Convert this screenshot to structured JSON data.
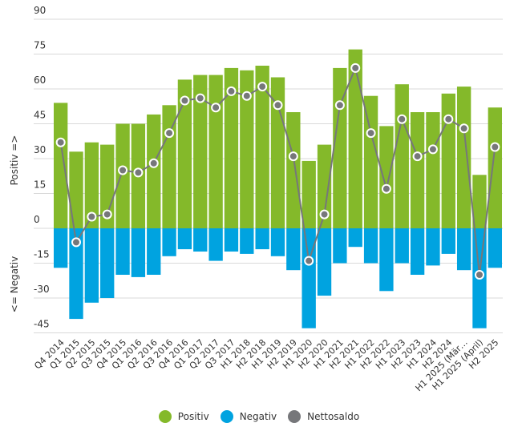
{
  "chart_data": {
    "type": "bar",
    "title": "",
    "xlabel": "",
    "ylabel_positive": "Positiv =>",
    "ylabel_negative": "<= Negativ",
    "ylim": [
      -45,
      90
    ],
    "yticks": [
      90,
      75,
      60,
      45,
      30,
      15,
      0,
      -15,
      -30,
      -45
    ],
    "grid": true,
    "legend_position": "bottom",
    "categories": [
      "Q4 2014",
      "Q1 2015",
      "Q2 2015",
      "Q3 2015",
      "Q4 2015",
      "Q1 2016",
      "Q2 2016",
      "Q3 2016",
      "Q4 2016",
      "Q1 2017",
      "Q2 2017",
      "Q3 2017",
      "H1 2018",
      "H2 2018",
      "H1 2019",
      "H2 2019",
      "H1 2020",
      "H2 2020",
      "H1 2021",
      "H2 2021",
      "H1 2022",
      "H2 2022",
      "H1 2023",
      "H2 2023",
      "H1 2024",
      "H2 2024",
      "H1 2025 (Mär…",
      "H1 2025 (April)",
      "H2 2025"
    ],
    "series": [
      {
        "name": "Positiv",
        "type": "bar",
        "color": "#84b92a",
        "values": [
          54,
          33,
          37,
          36,
          45,
          45,
          49,
          53,
          64,
          66,
          66,
          69,
          68,
          70,
          65,
          50,
          29,
          36,
          69,
          77,
          57,
          44,
          62,
          50,
          50,
          58,
          61,
          23,
          52
        ]
      },
      {
        "name": "Negativ",
        "type": "bar",
        "color": "#00a3e0",
        "values": [
          -17,
          -39,
          -32,
          -30,
          -20,
          -21,
          -20,
          -12,
          -9,
          -10,
          -14,
          -10,
          -11,
          -9,
          -12,
          -18,
          -43,
          -29,
          -15,
          -8,
          -15,
          -27,
          -15,
          -20,
          -16,
          -11,
          -18,
          -43,
          -17
        ]
      },
      {
        "name": "Nettosaldo",
        "type": "line",
        "color": "#76777a",
        "values": [
          37,
          -6,
          5,
          6,
          25,
          24,
          28,
          41,
          55,
          56,
          52,
          59,
          57,
          61,
          53,
          31,
          -14,
          6,
          53,
          69,
          41,
          17,
          47,
          31,
          34,
          47,
          43,
          -20,
          35
        ]
      }
    ]
  },
  "legend": [
    {
      "label": "Positiv",
      "color": "#84b92a"
    },
    {
      "label": "Negativ",
      "color": "#00a3e0"
    },
    {
      "label": "Nettosaldo",
      "color": "#76777a"
    }
  ]
}
